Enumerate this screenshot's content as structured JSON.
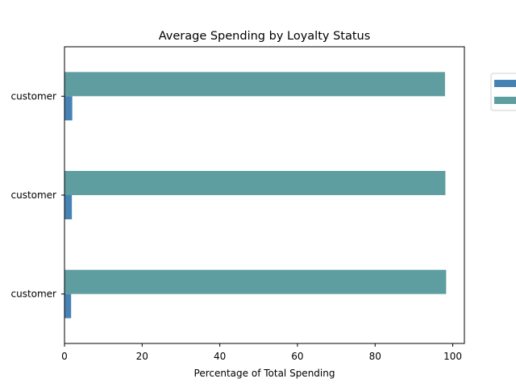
{
  "chart_data": {
    "type": "bar",
    "orientation": "horizontal",
    "title": "Average Spending by Loyalty Status",
    "xlabel": "Percentage of Total Spending",
    "ylabel": "",
    "xlim": [
      0,
      103
    ],
    "xticks": [
      0,
      20,
      40,
      60,
      80,
      100
    ],
    "grid": false,
    "legend_position": "top-right outside",
    "categories": [
      "customer",
      "customer",
      "customer"
    ],
    "series": [
      {
        "name": "",
        "color": "#4682b4",
        "values": [
          2.0,
          1.9,
          1.7
        ]
      },
      {
        "name": "",
        "color": "#5f9ea0",
        "values": [
          98.0,
          98.1,
          98.3
        ]
      }
    ]
  }
}
